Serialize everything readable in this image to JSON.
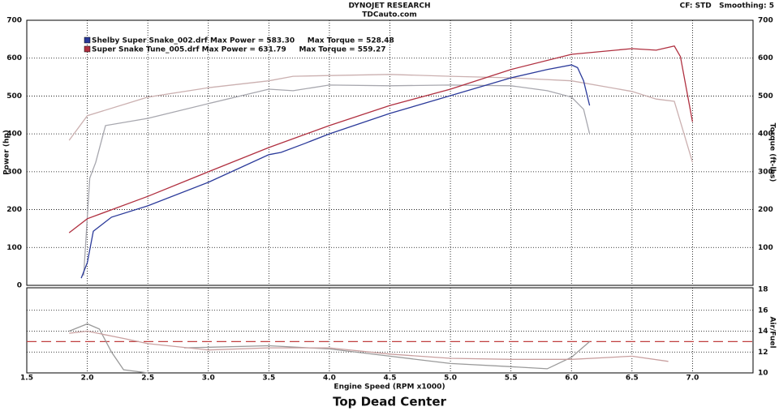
{
  "header": {
    "title": "DYNOJET RESEARCH",
    "subtitle": "TDCauto.com",
    "settings": "CF: STD   Smoothing: 5"
  },
  "footer": "Top Dead Center",
  "chart_data": [
    {
      "type": "line",
      "ylabel": "Power (hp)",
      "y2label": "Torque (ft-lbs)",
      "ylim": [
        0,
        700
      ],
      "yticks": [
        0,
        100,
        200,
        300,
        400,
        500,
        600,
        700
      ],
      "y2lim": [
        0,
        700
      ],
      "y2ticks": [
        100,
        200,
        300,
        400,
        500,
        600,
        700
      ],
      "grid": true,
      "legend": [
        {
          "label": "Shelby Super Snake_002.drf Max Power = 583.30     Max Torque = 528.48",
          "color": "#2b3a9a"
        },
        {
          "label": "Super Snake Tune_005.drf Max Power = 631.79     Max Torque = 559.27",
          "color": "#b03040"
        }
      ],
      "series": [
        {
          "color": "#a7a7ae",
          "axis": "y2",
          "x": [
            1.97,
            2.02,
            2.07,
            2.15,
            2.5,
            3.0,
            3.5,
            3.7,
            4.0,
            4.5,
            5.0,
            5.5,
            5.8,
            6.0,
            6.1,
            6.15
          ],
          "values": [
            26,
            283,
            325,
            422,
            441,
            480,
            518,
            514,
            529,
            527,
            529,
            527,
            514,
            497,
            465,
            400
          ]
        },
        {
          "color": "#cbb0b0",
          "axis": "y2",
          "x": [
            1.85,
            2.0,
            2.5,
            3.0,
            3.5,
            3.7,
            4.0,
            4.5,
            5.0,
            5.5,
            6.0,
            6.5,
            6.7,
            6.85,
            7.0
          ],
          "values": [
            383,
            448,
            497,
            522,
            540,
            552,
            554,
            557,
            552,
            548,
            540,
            512,
            492,
            486,
            325
          ]
        },
        {
          "color": "#2b3a9a",
          "x": [
            1.95,
            2.0,
            2.05,
            2.2,
            2.5,
            3.0,
            3.5,
            3.6,
            3.8,
            4.0,
            4.5,
            5.0,
            5.5,
            5.8,
            6.0,
            6.05,
            6.1,
            6.15
          ],
          "values": [
            19,
            60,
            143,
            180,
            210,
            272,
            345,
            351,
            375,
            400,
            454,
            501,
            548,
            570,
            582,
            575,
            540,
            475
          ]
        },
        {
          "color": "#b03040",
          "x": [
            1.85,
            2.0,
            2.5,
            3.0,
            3.5,
            4.0,
            4.5,
            5.0,
            5.5,
            6.0,
            6.5,
            6.7,
            6.85,
            6.9,
            7.0
          ],
          "values": [
            139,
            176,
            235,
            300,
            364,
            422,
            475,
            518,
            570,
            610,
            625,
            621,
            632,
            604,
            432
          ]
        }
      ]
    },
    {
      "type": "line",
      "ylabel": "Air/Fuel",
      "xlabel": "Engine Speed (RPM x1000)",
      "ylim": [
        10,
        18
      ],
      "yticks": [
        10,
        12,
        14,
        16,
        18
      ],
      "xlim": [
        1.5,
        7.5
      ],
      "xticks": [
        1.5,
        {
          "value": 2,
          "label": "2.0"
        },
        2.5,
        {
          "value": 3,
          "label": "3.0"
        },
        3.5,
        {
          "value": 4,
          "label": "4.0"
        },
        4.5,
        {
          "value": 5,
          "label": "5.0"
        },
        5.5,
        {
          "value": 6,
          "label": "6.0"
        },
        6.5,
        {
          "value": 7,
          "label": "7.0"
        }
      ],
      "grid": true,
      "reference_line": {
        "value": 13,
        "color": "#c04040"
      },
      "series": [
        {
          "color": "#9a9a9a",
          "x": [
            1.85,
            2.0,
            2.1,
            2.2,
            2.3,
            2.5,
            2.65,
            2.8,
            3.5,
            4.0,
            4.5,
            5.0,
            5.5,
            5.8,
            6.0,
            6.15
          ],
          "values": [
            14.0,
            14.7,
            14.2,
            12.0,
            10.3,
            10.0,
            null,
            12.4,
            12.6,
            12.3,
            11.6,
            10.9,
            10.6,
            10.4,
            11.5,
            13.0
          ]
        },
        {
          "color": "#c9a0a0",
          "x": [
            1.85,
            2.0,
            2.3,
            2.5,
            3.0,
            3.5,
            4.0,
            4.5,
            5.0,
            5.5,
            6.0,
            6.5,
            6.8
          ],
          "values": [
            13.8,
            14.0,
            13.3,
            12.8,
            12.2,
            12.4,
            12.4,
            11.8,
            11.4,
            11.3,
            11.3,
            11.6,
            11.1
          ]
        }
      ]
    }
  ]
}
